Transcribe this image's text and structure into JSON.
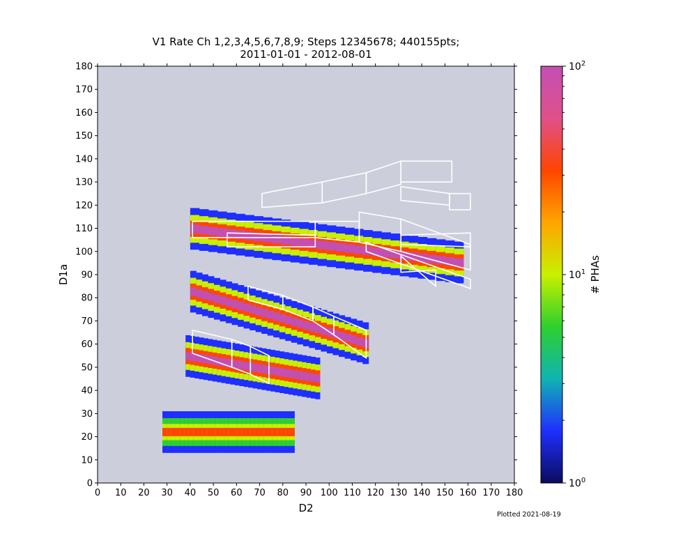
{
  "chart_data": {
    "type": "heatmap",
    "title": "V1 Rate Ch 1,2,3,4,5,6,7,8,9; Steps 12345678; 440155pts;",
    "subtitle": "2011-01-01 - 2012-08-01",
    "xlabel": "D2",
    "ylabel": "D1a",
    "xlim": [
      0,
      180
    ],
    "ylim": [
      0,
      180
    ],
    "xticks": [
      0,
      10,
      20,
      30,
      40,
      50,
      60,
      70,
      80,
      90,
      100,
      110,
      120,
      130,
      140,
      150,
      160,
      170,
      180
    ],
    "yticks": [
      0,
      10,
      20,
      30,
      40,
      50,
      60,
      70,
      80,
      90,
      100,
      110,
      120,
      130,
      140,
      150,
      160,
      170,
      180
    ],
    "colorbar": {
      "label": "# PHAs",
      "scale": "log",
      "range": [
        1,
        100
      ],
      "tick_labels": [
        "10^0",
        "10^1",
        "10^2"
      ],
      "colormap_stops": [
        "#0b0b5e",
        "#1f2fff",
        "#10b3b3",
        "#2ed02e",
        "#c8f000",
        "#ffa500",
        "#ff4500",
        "#e0508a",
        "#c34fb3"
      ]
    },
    "background_color": "#cccfdb",
    "density_regions": [
      {
        "name": "upper band",
        "x_range": [
          40,
          158
        ],
        "y_center": [
          110,
          95
        ],
        "peak_PHAs": 100
      },
      {
        "name": "middle band",
        "x_range": [
          40,
          117
        ],
        "y_center": [
          83,
          60
        ],
        "peak_PHAs": 100
      },
      {
        "name": "lower blob",
        "x_range": [
          38,
          96
        ],
        "y_center": [
          55,
          45
        ],
        "peak_PHAs": 100
      },
      {
        "name": "bottom stripe",
        "x_range": [
          28,
          85
        ],
        "y_center": [
          22,
          22
        ],
        "peak_PHAs": 30
      }
    ],
    "box_outlines": [
      {
        "name": "box-a",
        "points": [
          [
            41,
            56
          ],
          [
            41,
            66
          ],
          [
            58,
            62
          ],
          [
            58,
            50
          ]
        ]
      },
      {
        "name": "box-b",
        "points": [
          [
            58,
            50
          ],
          [
            58,
            62
          ],
          [
            66,
            59
          ],
          [
            66,
            47
          ]
        ]
      },
      {
        "name": "box-c",
        "points": [
          [
            66,
            47
          ],
          [
            66,
            59
          ],
          [
            74,
            55
          ],
          [
            74,
            43
          ]
        ]
      },
      {
        "name": "box-d",
        "points": [
          [
            65,
            79
          ],
          [
            65,
            85
          ],
          [
            80,
            81
          ],
          [
            80,
            75
          ]
        ]
      },
      {
        "name": "box-e",
        "points": [
          [
            80,
            75
          ],
          [
            80,
            81
          ],
          [
            93,
            76
          ],
          [
            93,
            70
          ]
        ]
      },
      {
        "name": "box-f",
        "points": [
          [
            93,
            70
          ],
          [
            93,
            76
          ],
          [
            102,
            72
          ],
          [
            102,
            64
          ]
        ]
      },
      {
        "name": "box-g",
        "points": [
          [
            102,
            64
          ],
          [
            102,
            72
          ],
          [
            116,
            66
          ],
          [
            116,
            54
          ]
        ]
      },
      {
        "name": "box-h",
        "points": [
          [
            41,
            106
          ],
          [
            41,
            113
          ],
          [
            94,
            113
          ],
          [
            94,
            106
          ]
        ]
      },
      {
        "name": "box-i",
        "points": [
          [
            94,
            106
          ],
          [
            94,
            113
          ],
          [
            113,
            113
          ],
          [
            113,
            104
          ]
        ]
      },
      {
        "name": "box-j",
        "points": [
          [
            113,
            104
          ],
          [
            113,
            117
          ],
          [
            131,
            114
          ],
          [
            131,
            100
          ]
        ]
      },
      {
        "name": "box-k",
        "points": [
          [
            131,
            100
          ],
          [
            131,
            114
          ],
          [
            161,
            103
          ],
          [
            161,
            92
          ]
        ]
      },
      {
        "name": "box-l",
        "points": [
          [
            56,
            102
          ],
          [
            56,
            108
          ],
          [
            94,
            107
          ],
          [
            94,
            102
          ]
        ]
      },
      {
        "name": "box-m",
        "points": [
          [
            71,
            119
          ],
          [
            71,
            125
          ],
          [
            97,
            130
          ],
          [
            97,
            121
          ]
        ]
      },
      {
        "name": "box-n",
        "points": [
          [
            97,
            121
          ],
          [
            97,
            130
          ],
          [
            116,
            134
          ],
          [
            116,
            125
          ]
        ]
      },
      {
        "name": "box-o",
        "points": [
          [
            116,
            125
          ],
          [
            116,
            134
          ],
          [
            131,
            139
          ],
          [
            131,
            129
          ]
        ]
      },
      {
        "name": "box-p",
        "points": [
          [
            131,
            130
          ],
          [
            131,
            139
          ],
          [
            153,
            139
          ],
          [
            153,
            130
          ]
        ]
      },
      {
        "name": "box-q",
        "points": [
          [
            131,
            122
          ],
          [
            131,
            128
          ],
          [
            152,
            125
          ],
          [
            152,
            120
          ]
        ]
      },
      {
        "name": "box-r",
        "points": [
          [
            152,
            118
          ],
          [
            152,
            125
          ],
          [
            161,
            125
          ],
          [
            161,
            118
          ]
        ]
      },
      {
        "name": "box-s",
        "points": [
          [
            131,
            103
          ],
          [
            131,
            107
          ],
          [
            161,
            108
          ],
          [
            161,
            102
          ]
        ]
      },
      {
        "name": "box-t",
        "points": [
          [
            116,
            100
          ],
          [
            116,
            104
          ],
          [
            161,
            88
          ],
          [
            161,
            84
          ]
        ]
      },
      {
        "name": "box-u",
        "points": [
          [
            131,
            91
          ],
          [
            131,
            98
          ],
          [
            146,
            85
          ],
          [
            146,
            92
          ]
        ]
      }
    ],
    "grid": false
  },
  "footer": "Plotted 2021-08-19"
}
